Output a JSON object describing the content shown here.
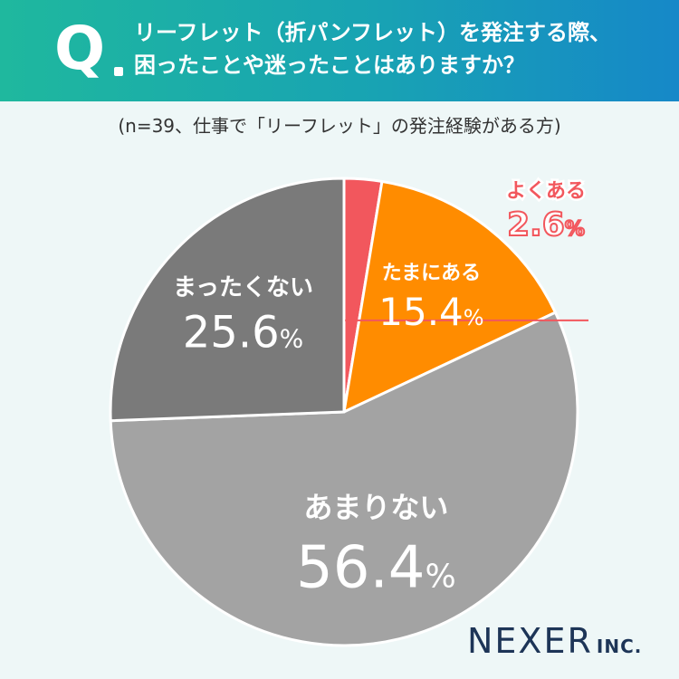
{
  "header": {
    "q_mark": "Q",
    "question_line1": "リーフレット（折パンフレット）を発注する際、",
    "question_line2": "困ったことや迷ったことはありますか？"
  },
  "subtitle": "(n=39、仕事で「リーフレット」の発注経験がある方)",
  "chart_data": {
    "type": "pie",
    "title": "リーフレット（折パンフレット）を発注する際、困ったことや迷ったことはありますか？",
    "unit": "%",
    "slices": [
      {
        "label": "よくある",
        "value": 2.6,
        "value_text": "2.6",
        "color": "#f2575d"
      },
      {
        "label": "たまにある",
        "value": 15.4,
        "value_text": "15.4",
        "color": "#ff8c00"
      },
      {
        "label": "あまりない",
        "value": 56.4,
        "value_text": "56.4",
        "color": "#a3a3a3"
      },
      {
        "label": "まったくない",
        "value": 25.6,
        "value_text": "25.6",
        "color": "#7a7a7a"
      }
    ],
    "start_angle_deg": 0,
    "direction": "clockwise"
  },
  "logo": {
    "name": "NEXER",
    "suffix": "INC."
  },
  "colors": {
    "background": "#eef7f7",
    "header_start": "#1fb89e",
    "header_end": "#1688c8",
    "callout": "#f2575d"
  }
}
